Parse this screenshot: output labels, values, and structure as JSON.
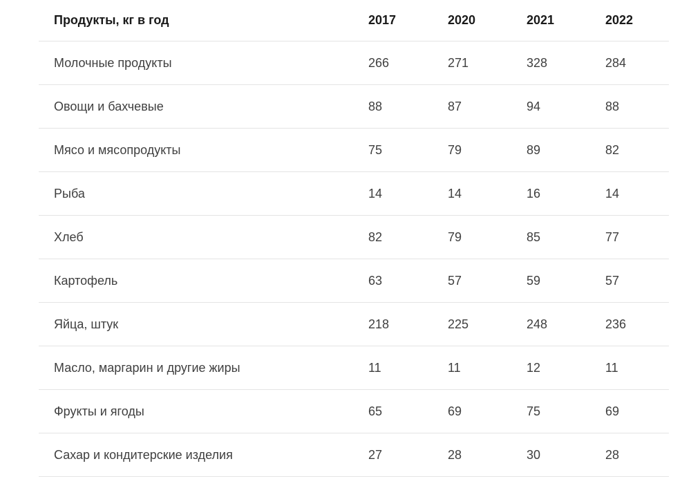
{
  "chart_data": {
    "type": "table",
    "title": "Продукты, кг в год",
    "columns": [
      "Продукты, кг в год",
      "2017",
      "2020",
      "2021",
      "2022"
    ],
    "rows": [
      [
        "Молочные продукты",
        266,
        271,
        328,
        284
      ],
      [
        "Овощи и бахчевые",
        88,
        87,
        94,
        88
      ],
      [
        "Мясо и мясопродукты",
        75,
        79,
        89,
        82
      ],
      [
        "Рыба",
        14,
        14,
        16,
        14
      ],
      [
        "Хлеб",
        82,
        79,
        85,
        77
      ],
      [
        "Картофель",
        63,
        57,
        59,
        57
      ],
      [
        "Яйца, штук",
        218,
        225,
        248,
        236
      ],
      [
        "Масло, маргарин и другие жиры",
        11,
        11,
        12,
        11
      ],
      [
        "Фрукты и ягоды",
        65,
        69,
        75,
        69
      ],
      [
        "Сахар и кондитерские изделия",
        27,
        28,
        30,
        28
      ]
    ],
    "layout": {
      "header_bold": true,
      "row_separators": true,
      "value_alignment": "left"
    }
  },
  "colors": {
    "background": "#ffffff",
    "header-text": "#1a1a1a",
    "body-text": "#3f3f3f",
    "divider": "#e4e4e4"
  }
}
